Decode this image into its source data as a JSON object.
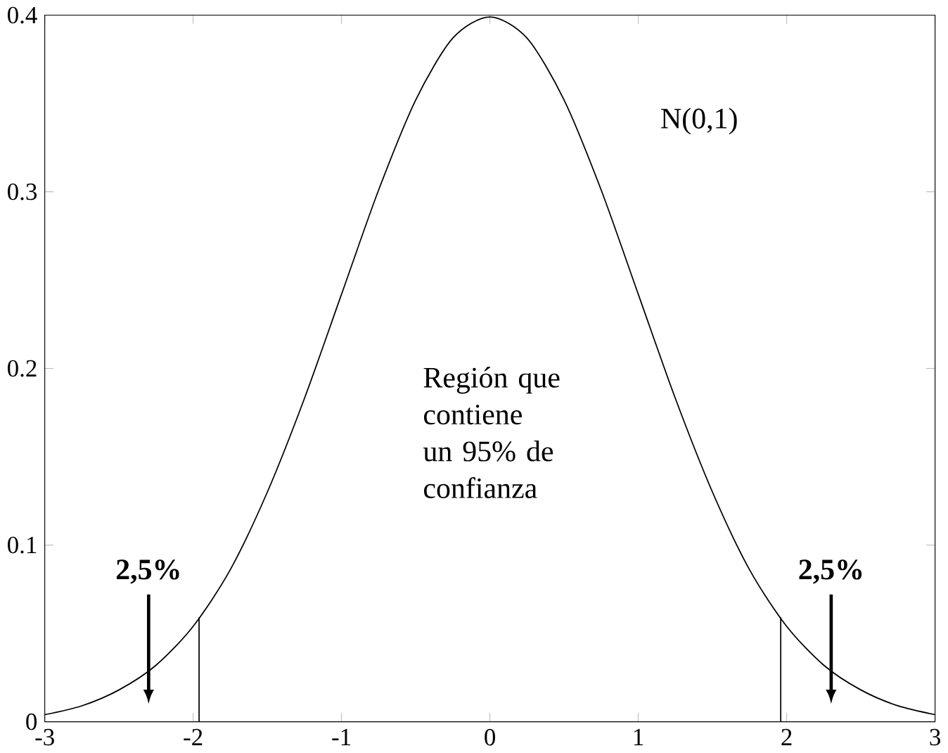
{
  "chart_data": {
    "type": "line",
    "xlim": [
      -3,
      3
    ],
    "ylim": [
      0,
      0.4
    ],
    "xticks": [
      -3,
      -2,
      -1,
      0,
      1,
      2,
      3
    ],
    "yticks": [
      0,
      0.1,
      0.2,
      0.3,
      0.4
    ],
    "grid": false,
    "marker": "none",
    "line_style": "solid",
    "series": [
      {
        "color": "#000000",
        "x": [
          -3,
          -2.75,
          -2.5,
          -2.25,
          -2,
          -1.75,
          -1.5,
          -1.25,
          -1,
          -0.75,
          -0.5,
          -0.25,
          0,
          0.25,
          0.5,
          0.75,
          1,
          1.25,
          1.5,
          1.75,
          2,
          2.25,
          2.5,
          2.75,
          3
        ],
        "values": [
          0.004,
          0.009,
          0.018,
          0.032,
          0.054,
          0.086,
          0.13,
          0.183,
          0.242,
          0.301,
          0.352,
          0.387,
          0.399,
          0.387,
          0.352,
          0.301,
          0.242,
          0.183,
          0.13,
          0.086,
          0.054,
          0.032,
          0.018,
          0.009,
          0.004
        ]
      }
    ],
    "ref_lines": [
      {
        "axis": "x",
        "value": -1.96,
        "color": "#000000"
      },
      {
        "axis": "x",
        "value": 1.96,
        "color": "#000000"
      }
    ],
    "annotations": [
      "N(0,1)",
      "Región que contiene un 95% de confianza",
      "2,5%",
      "2,5%"
    ]
  }
}
